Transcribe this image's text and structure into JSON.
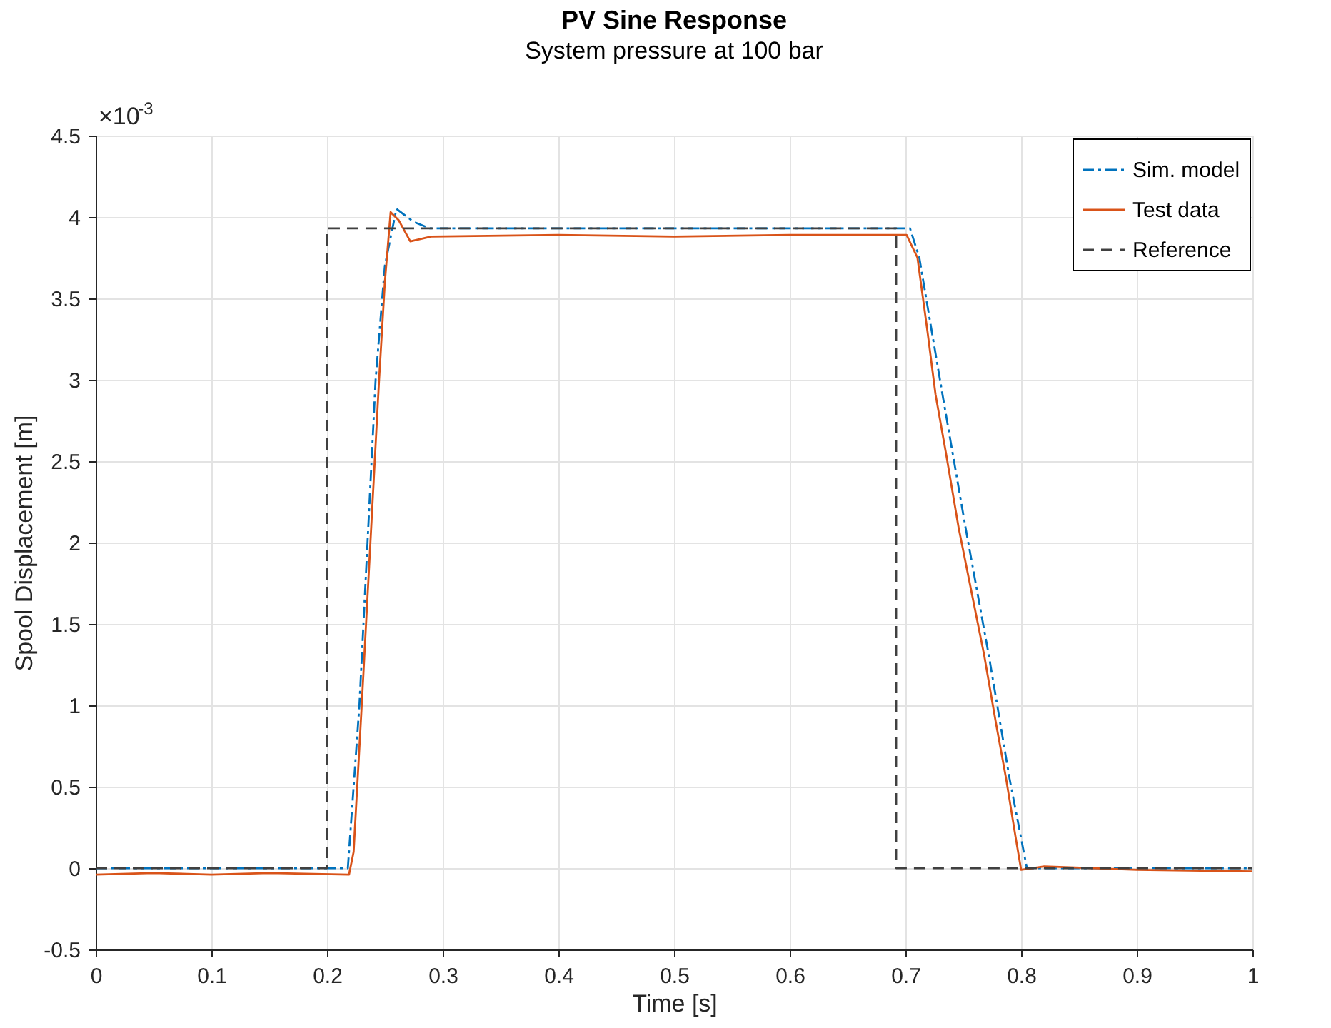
{
  "chart_data": {
    "type": "line",
    "title": "PV Sine Response",
    "subtitle": "System pressure at 100 bar",
    "xlabel": "Time [s]",
    "ylabel": "Spool Displacement [m]",
    "annotations": [
      "×10$^{-3}$"
    ],
    "xlim": [
      0,
      1
    ],
    "xticks": [
      0,
      0.1,
      0.2,
      0.3,
      0.4,
      0.5,
      0.6,
      0.7,
      0.8,
      0.9,
      1
    ],
    "ylim": [
      -0.5,
      4.5
    ],
    "yticks": [
      {
        "value": -0.5,
        "label": "-0.5"
      },
      0,
      0.5,
      1,
      1.5,
      2,
      2.5,
      3,
      3.5,
      4,
      4.5
    ],
    "grid": true,
    "legend": "top right",
    "series": [
      {
        "name": "Sim. model",
        "color": "#0072bd",
        "line_style": "dashdot",
        "x": [
          0,
          0.218,
          0.228,
          0.242,
          0.25,
          0.26,
          0.275,
          0.289,
          0.704,
          0.712,
          0.732,
          0.752,
          0.772,
          0.79,
          0.805,
          1
        ],
        "values": [
          0,
          0,
          1,
          3,
          3.7,
          4.05,
          3.97,
          3.93,
          3.93,
          3.75,
          2.91,
          2.09,
          1.31,
          0.55,
          0,
          0
        ]
      },
      {
        "name": "Test data",
        "color": "#d95319",
        "line_style": "solid",
        "x": [
          0,
          0.05,
          0.1,
          0.15,
          0.219,
          0.223,
          0.23,
          0.245,
          0.25,
          0.255,
          0.262,
          0.272,
          0.29,
          0.4,
          0.5,
          0.6,
          0.701,
          0.7104,
          0.719,
          0.726,
          0.735,
          0.746,
          0.757,
          0.768,
          0.778,
          0.787,
          0.795,
          0.8,
          0.82,
          0.9,
          1
        ],
        "values": [
          -0.04,
          -0.03,
          -0.04,
          -0.03,
          -0.04,
          0.1,
          1,
          3,
          3.6,
          4.03,
          3.98,
          3.85,
          3.88,
          3.89,
          3.88,
          3.89,
          3.89,
          3.75,
          3.3,
          2.91,
          2.55,
          2.09,
          1.7,
          1.31,
          0.9,
          0.55,
          0.2,
          -0.01,
          0.01,
          -0.01,
          -0.02
        ]
      },
      {
        "name": "Reference",
        "color": "#404040",
        "line_style": "dashed",
        "x": [
          0,
          0.2,
          0.2,
          0.692,
          0.692,
          1
        ],
        "values": [
          0,
          0,
          3.93,
          3.93,
          0,
          0
        ]
      }
    ]
  }
}
